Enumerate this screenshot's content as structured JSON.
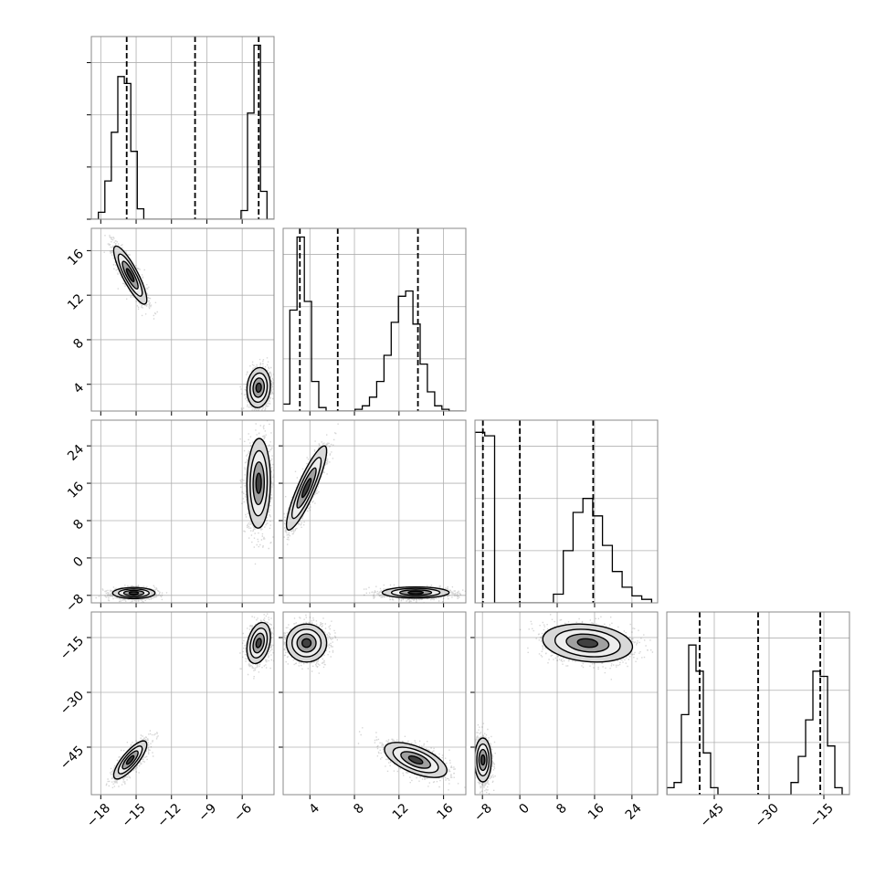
{
  "chart_data": {
    "type": "corner",
    "dims": 4,
    "grid": true,
    "variables": [
      {
        "range": [
          -18.8,
          -3.3
        ],
        "ticks": [
          -18,
          -15,
          -12,
          -9,
          -6
        ],
        "tick_labels": [
          "−18",
          "−15",
          "−12",
          "−9",
          "−6"
        ],
        "lines": [
          -15.8,
          -10.0,
          -4.6
        ]
      },
      {
        "range": [
          1.6,
          18.0
        ],
        "ticks": [
          4,
          8,
          12,
          16
        ],
        "tick_labels": [
          "4",
          "8",
          "12",
          "16"
        ],
        "lines": [
          3.1,
          6.5,
          13.7
        ]
      },
      {
        "range": [
          -9.6,
          29.5
        ],
        "ticks": [
          -8,
          0,
          8,
          16,
          24
        ],
        "tick_labels": [
          "−8",
          "0",
          "8",
          "16",
          "24"
        ],
        "lines": [
          -7.9,
          0.0,
          15.7
        ]
      },
      {
        "range": [
          -58.0,
          -8.0
        ],
        "ticks": [
          -45,
          -30,
          -15
        ],
        "tick_labels": [
          "−45",
          "−30",
          "−15"
        ],
        "lines": [
          -49.0,
          -33.0,
          -16.0
        ]
      }
    ],
    "histograms": [
      {
        "variable": 0,
        "edges": [
          -18.75,
          -18.2,
          -17.65,
          -17.1,
          -16.55,
          -16.0,
          -15.45,
          -14.9,
          -14.35,
          -13.8,
          -13.25,
          -12.7,
          -12.15,
          -11.6,
          -11.05,
          -10.5,
          -9.95,
          -9.4,
          -8.85,
          -8.3,
          -7.75,
          -7.2,
          -6.65,
          -6.1,
          -5.55,
          -5.0,
          -4.45,
          -3.9,
          -3.35
        ],
        "counts": [
          0,
          0.04,
          0.22,
          0.5,
          0.82,
          0.78,
          0.39,
          0.06,
          0,
          0,
          0,
          0,
          0,
          0,
          0,
          0,
          0,
          0,
          0,
          0,
          0,
          0,
          0,
          0.05,
          0.61,
          1.0,
          0.16,
          0
        ]
      },
      {
        "variable": 1,
        "edges": [
          1.55,
          2.2,
          2.85,
          3.5,
          4.15,
          4.8,
          5.45,
          6.1,
          6.75,
          7.4,
          8.05,
          8.7,
          9.35,
          10.0,
          10.65,
          11.3,
          11.95,
          12.6,
          13.25,
          13.9,
          14.55,
          15.2,
          15.85,
          16.5,
          17.15,
          17.8
        ],
        "counts": [
          0.04,
          0.58,
          1.0,
          0.63,
          0.17,
          0.02,
          0.0,
          0.0,
          0,
          0,
          0.01,
          0.03,
          0.08,
          0.17,
          0.32,
          0.51,
          0.66,
          0.69,
          0.5,
          0.27,
          0.11,
          0.03,
          0.01,
          0.0,
          0
        ]
      },
      {
        "variable": 2,
        "edges": [
          -9.6,
          -7.5,
          -5.4,
          -3.3,
          -1.2,
          0.9,
          3.0,
          5.1,
          7.2,
          9.3,
          11.4,
          13.5,
          15.6,
          17.7,
          19.8,
          21.9,
          24.0,
          26.1,
          28.2
        ],
        "counts": [
          0.98,
          0.96,
          0,
          0,
          0,
          0,
          0,
          0,
          0.05,
          0.3,
          0.52,
          0.6,
          0.5,
          0.33,
          0.18,
          0.09,
          0.04,
          0.02
        ]
      },
      {
        "variable": 3,
        "edges": [
          -58,
          -56,
          -54,
          -52,
          -50,
          -48,
          -46,
          -44,
          -42,
          -40,
          -38,
          -36,
          -34,
          -32,
          -30,
          -28,
          -26,
          -24,
          -22,
          -20,
          -18,
          -16,
          -14,
          -12,
          -10,
          -8
        ],
        "counts": [
          0.04,
          0.07,
          0.46,
          0.86,
          0.71,
          0.24,
          0.04,
          0,
          0,
          0,
          0,
          0,
          0,
          0,
          0,
          0,
          0,
          0.07,
          0.22,
          0.43,
          0.71,
          0.68,
          0.28,
          0.04,
          0
        ]
      }
    ],
    "scatter_panels": [
      {
        "x": 0,
        "y": 1,
        "clusters": [
          {
            "mean": [
              -15.5,
              13.8
            ],
            "sd": [
              0.7,
              1.3
            ],
            "corr": -0.85,
            "weight": 0.5
          },
          {
            "mean": [
              -4.6,
              3.7
            ],
            "sd": [
              0.5,
              0.9
            ],
            "corr": 0.1,
            "weight": 0.5
          }
        ]
      },
      {
        "x": 0,
        "y": 2,
        "clusters": [
          {
            "mean": [
              -15.2,
              -7.5
            ],
            "sd": [
              0.9,
              0.6
            ],
            "corr": 0.0,
            "weight": 0.5
          },
          {
            "mean": [
              -4.6,
              16.0
            ],
            "sd": [
              0.5,
              4.8
            ],
            "corr": 0.05,
            "weight": 0.5
          }
        ]
      },
      {
        "x": 0,
        "y": 3,
        "clusters": [
          {
            "mean": [
              -15.5,
              -48.5
            ],
            "sd": [
              0.7,
              2.6
            ],
            "corr": 0.8,
            "weight": 0.5
          },
          {
            "mean": [
              -4.6,
              -16.5
            ],
            "sd": [
              0.5,
              2.8
            ],
            "corr": 0.3,
            "weight": 0.5
          }
        ]
      },
      {
        "x": 1,
        "y": 2,
        "clusters": [
          {
            "mean": [
              3.7,
              15.0
            ],
            "sd": [
              0.9,
              4.5
            ],
            "corr": 0.88,
            "weight": 0.5
          },
          {
            "mean": [
              13.5,
              -7.4
            ],
            "sd": [
              1.5,
              0.6
            ],
            "corr": 0.0,
            "weight": 0.5
          }
        ]
      },
      {
        "x": 1,
        "y": 3,
        "clusters": [
          {
            "mean": [
              3.7,
              -16.5
            ],
            "sd": [
              0.9,
              2.6
            ],
            "corr": 0.0,
            "weight": 0.5
          },
          {
            "mean": [
              13.5,
              -48.5
            ],
            "sd": [
              1.4,
              2.4
            ],
            "corr": -0.6,
            "weight": 0.5
          }
        ]
      },
      {
        "x": 2,
        "y": 3,
        "clusters": [
          {
            "mean": [
              -7.9,
              -48.5
            ],
            "sd": [
              0.9,
              3.0
            ],
            "corr": 0.0,
            "weight": 0.5
          },
          {
            "mean": [
              14.5,
              -16.5
            ],
            "sd": [
              4.8,
              2.6
            ],
            "corr": -0.2,
            "weight": 0.5
          }
        ]
      }
    ]
  }
}
